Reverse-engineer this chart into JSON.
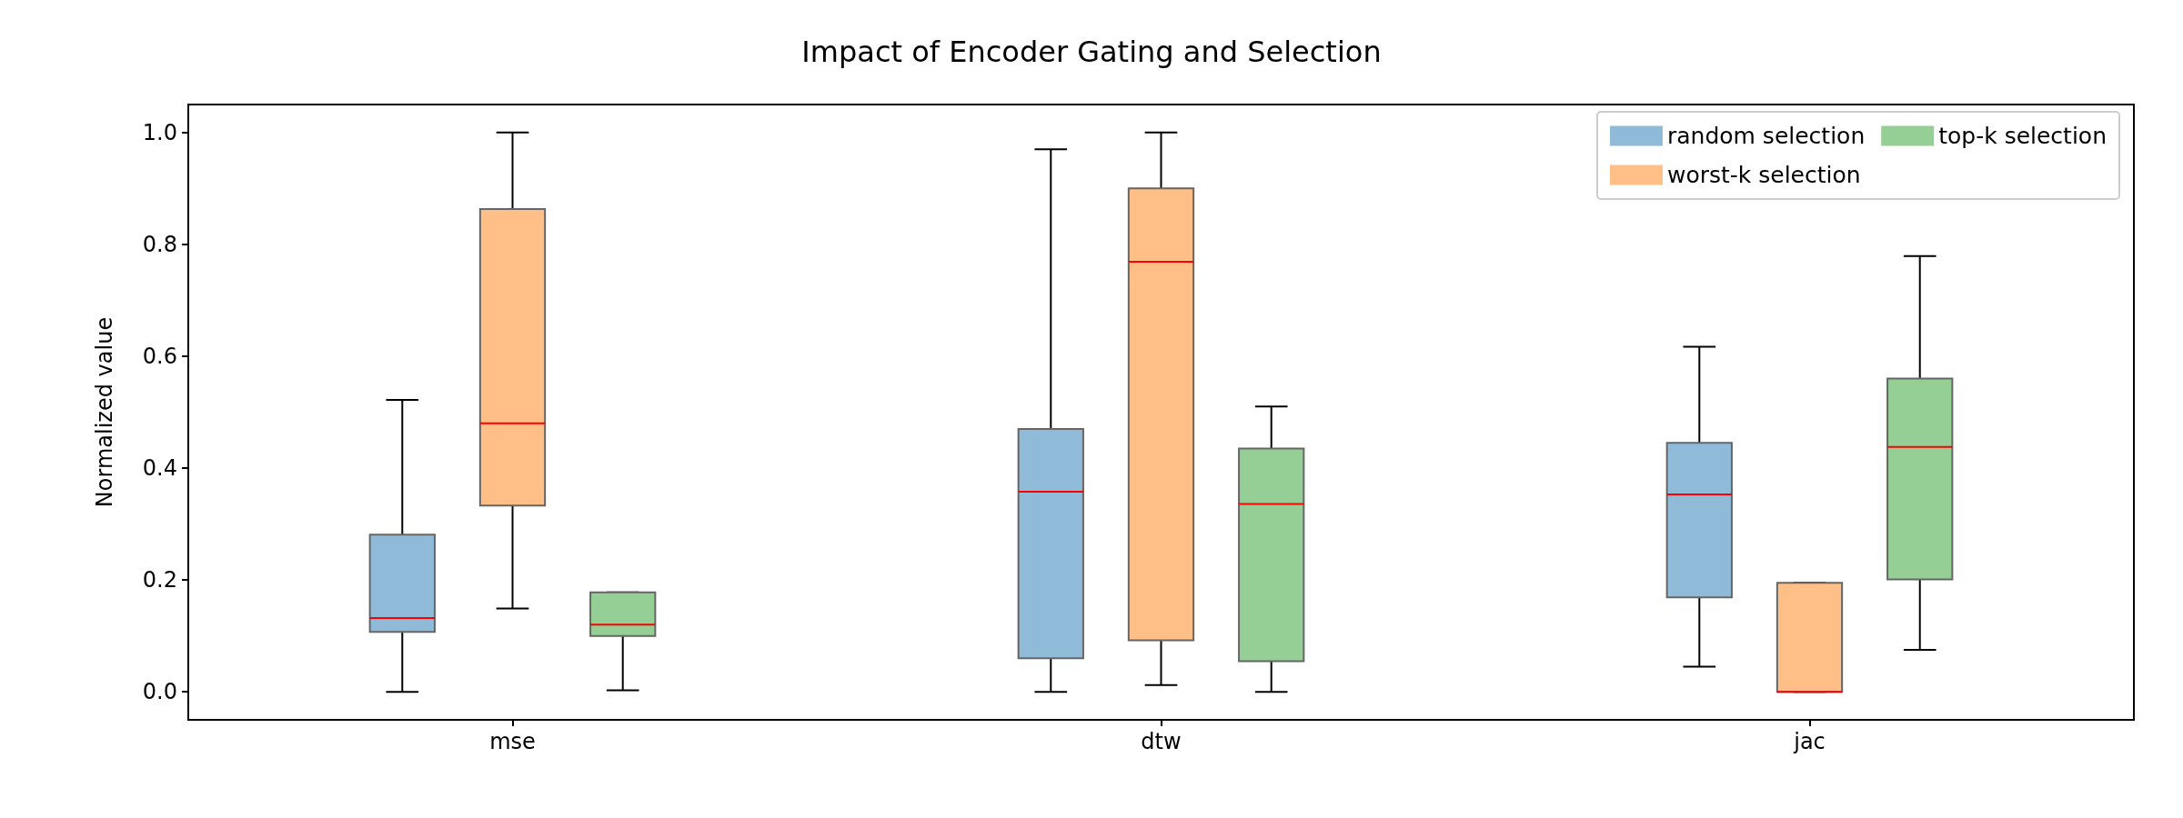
{
  "chart_data": {
    "type": "box",
    "title": "Impact of Encoder Gating and Selection",
    "ylabel": "Normalized value",
    "categories": [
      "mse",
      "dtw",
      "jac"
    ],
    "series": [
      {
        "name": "random selection",
        "color": "#8fbbd9",
        "boxes": [
          {
            "low": 0,
            "q1": 0.107,
            "median": 0.132,
            "q3": 0.281,
            "high": 0.522
          },
          {
            "low": 0,
            "q1": 0.06,
            "median": 0.358,
            "q3": 0.47,
            "high": 0.97
          },
          {
            "low": 0.045,
            "q1": 0.169,
            "median": 0.353,
            "q3": 0.445,
            "high": 0.617
          }
        ]
      },
      {
        "name": "worst-k selection",
        "color": "#ffbf86",
        "boxes": [
          {
            "low": 0.149,
            "q1": 0.333,
            "median": 0.48,
            "q3": 0.863,
            "high": 1.0
          },
          {
            "low": 0.012,
            "q1": 0.092,
            "median": 0.769,
            "q3": 0.9,
            "high": 1.0
          },
          {
            "low": 0,
            "q1": 0,
            "median": 0,
            "q3": 0.195,
            "high": 0.195
          }
        ]
      },
      {
        "name": "top-k selection",
        "color": "#95cf95",
        "boxes": [
          {
            "low": 0.003,
            "q1": 0.1,
            "median": 0.12,
            "q3": 0.178,
            "high": 0.178
          },
          {
            "low": 0,
            "q1": 0.055,
            "median": 0.336,
            "q3": 0.435,
            "high": 0.51
          },
          {
            "low": 0.075,
            "q1": 0.201,
            "median": 0.438,
            "q3": 0.56,
            "high": 0.779
          }
        ]
      }
    ],
    "ylim": [
      -0.05,
      1.05
    ],
    "yticks": [
      {
        "value": 0,
        "label": "0.0"
      },
      {
        "value": 0.2,
        "label": "0.2"
      },
      {
        "value": 0.4,
        "label": "0.4"
      },
      {
        "value": 0.6,
        "label": "0.6"
      },
      {
        "value": 0.8,
        "label": "0.8"
      },
      {
        "value": 1.0,
        "label": "1.0"
      }
    ],
    "grid": false,
    "legend": "top right"
  }
}
